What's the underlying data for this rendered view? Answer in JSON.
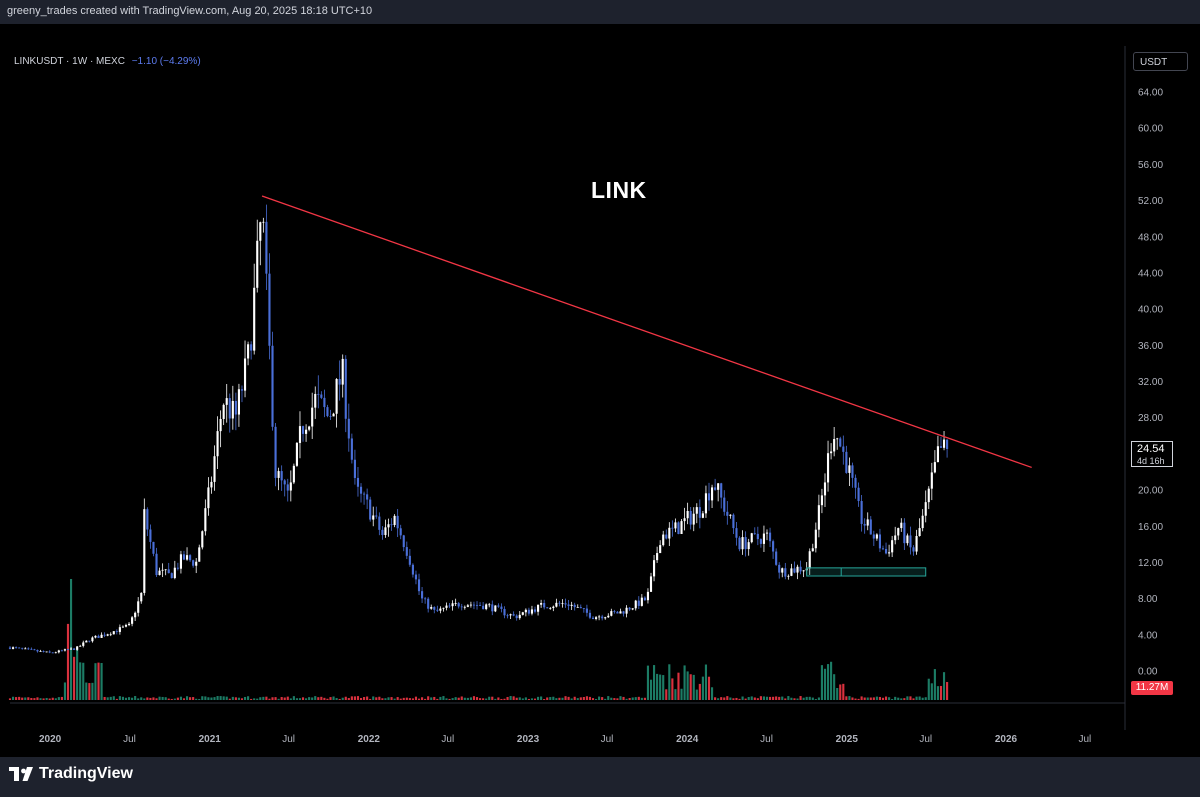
{
  "header": {
    "credit": "greeny_trades created with TradingView.com, Aug 20, 2025 18:18 UTC+10"
  },
  "legend": {
    "symbol": "LINKUSDT · 1W · MEXC",
    "change": "−1.10 (−4.29%)"
  },
  "currency": "USDT",
  "price_box": {
    "price": "24.54",
    "countdown": "4d 16h"
  },
  "volume_label": "11.27M",
  "footer": {
    "brand": "TradingView"
  },
  "colors": {
    "up": "#ffffff",
    "down": "#4a6fd8",
    "trendline": "#f23645",
    "support": "#26a69a",
    "vol_up": "#1f8a70",
    "vol_down": "#f23645"
  },
  "chart_data": {
    "type": "candlestick",
    "title": "LINK",
    "y_ticks": [
      "64.00",
      "60.00",
      "56.00",
      "52.00",
      "48.00",
      "44.00",
      "40.00",
      "36.00",
      "32.00",
      "28.00",
      "24.00",
      "20.00",
      "16.00",
      "12.00",
      "8.00",
      "4.00",
      "0.00"
    ],
    "ylim": [
      0,
      64
    ],
    "x_ticks": [
      {
        "label": "2020",
        "date": "2020-01"
      },
      {
        "label": "Jul",
        "date": "2020-07"
      },
      {
        "label": "2021",
        "date": "2021-01"
      },
      {
        "label": "Jul",
        "date": "2021-07"
      },
      {
        "label": "2022",
        "date": "2022-01"
      },
      {
        "label": "Jul",
        "date": "2022-07"
      },
      {
        "label": "2023",
        "date": "2023-01"
      },
      {
        "label": "Jul",
        "date": "2023-07"
      },
      {
        "label": "2024",
        "date": "2024-01"
      },
      {
        "label": "Jul",
        "date": "2024-07"
      },
      {
        "label": "2025",
        "date": "2025-01"
      },
      {
        "label": "Jul",
        "date": "2025-07"
      },
      {
        "label": "2026",
        "date": "2026-01"
      },
      {
        "label": "Jul",
        "date": "2026-07"
      }
    ],
    "close_path": [
      [
        "2019-10",
        2.6
      ],
      [
        "2020-01",
        2.0
      ],
      [
        "2020-03",
        2.5
      ],
      [
        "2020-04",
        3.5
      ],
      [
        "2020-06",
        4.5
      ],
      [
        "2020-07",
        5.0
      ],
      [
        "2020-08",
        9.0
      ],
      [
        "2020-08",
        18.0
      ],
      [
        "2020-09",
        11.0
      ],
      [
        "2020-10",
        10.5
      ],
      [
        "2020-11",
        12.5
      ],
      [
        "2020-12",
        12.0
      ],
      [
        "2021-01",
        20.0
      ],
      [
        "2021-02",
        30.0
      ],
      [
        "2021-03",
        28.0
      ],
      [
        "2021-04",
        35.0
      ],
      [
        "2021-05",
        51.0
      ],
      [
        "2021-06",
        22.0
      ],
      [
        "2021-07",
        19.0
      ],
      [
        "2021-08",
        27.0
      ],
      [
        "2021-09",
        30.0
      ],
      [
        "2021-10",
        28.0
      ],
      [
        "2021-11",
        33.0
      ],
      [
        "2021-12",
        20.0
      ],
      [
        "2022-01",
        18.0
      ],
      [
        "2022-02",
        15.0
      ],
      [
        "2022-03",
        17.0
      ],
      [
        "2022-04",
        13.0
      ],
      [
        "2022-05",
        8.0
      ],
      [
        "2022-06",
        6.5
      ],
      [
        "2022-08",
        7.5
      ],
      [
        "2022-10",
        7.2
      ],
      [
        "2022-12",
        6.0
      ],
      [
        "2023-02",
        7.2
      ],
      [
        "2023-04",
        7.5
      ],
      [
        "2023-06",
        6.0
      ],
      [
        "2023-08",
        6.5
      ],
      [
        "2023-10",
        8.0
      ],
      [
        "2023-11",
        15.0
      ],
      [
        "2023-12",
        15.5
      ],
      [
        "2024-02",
        18.0
      ],
      [
        "2024-03",
        21.0
      ],
      [
        "2024-05",
        14.0
      ],
      [
        "2024-07",
        15.0
      ],
      [
        "2024-08",
        11.0
      ],
      [
        "2024-10",
        11.5
      ],
      [
        "2024-11",
        18.0
      ],
      [
        "2024-12",
        27.0
      ],
      [
        "2025-01",
        23.0
      ],
      [
        "2025-02",
        17.0
      ],
      [
        "2025-04",
        13.0
      ],
      [
        "2025-05",
        16.0
      ],
      [
        "2025-06",
        13.0
      ],
      [
        "2025-07",
        18.0
      ],
      [
        "2025-08",
        24.5
      ]
    ],
    "last_close": 24.54,
    "trendline": [
      [
        "2021-05",
        52.5
      ],
      [
        "2026-03",
        22.5
      ]
    ],
    "support_zone": {
      "from": "2024-10",
      "to": "2025-07",
      "low": 10.5,
      "high": 11.4
    },
    "volume": {
      "last": "11.27M"
    }
  }
}
